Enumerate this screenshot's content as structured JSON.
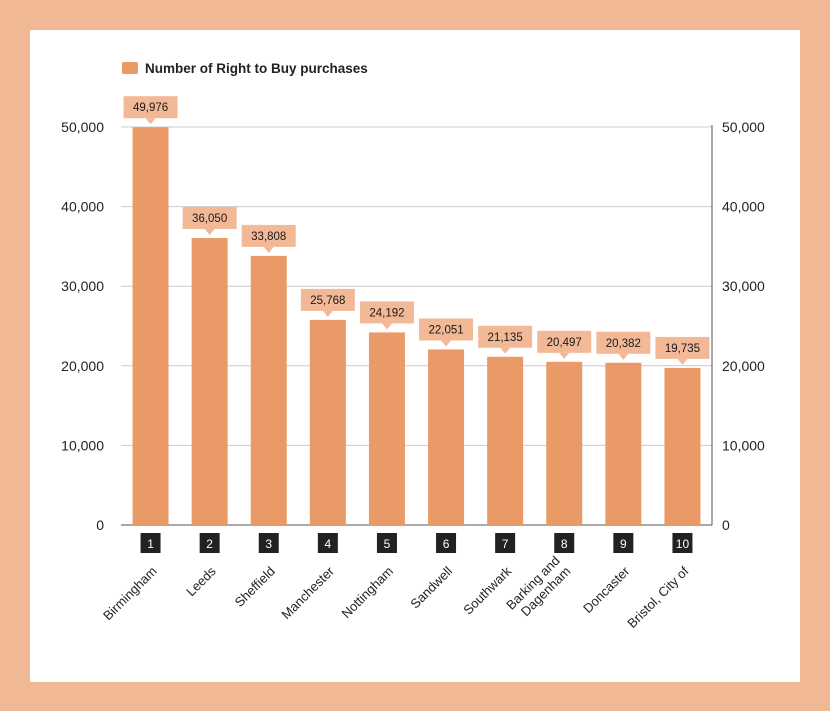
{
  "colors": {
    "background": "#f0b894",
    "panel": "#ffffff",
    "bar": "#ea9a66",
    "label_box": "#f3b896",
    "rank_box": "#222222",
    "grid": "#cccccc",
    "axis": "#555555"
  },
  "chart_data": {
    "type": "bar",
    "legend": "Number of Right to Buy purchases",
    "legend_position": "top-left",
    "series": [
      {
        "name": "Number of Right to Buy purchases",
        "values": [
          49976,
          36050,
          33808,
          25768,
          24192,
          22051,
          21135,
          20497,
          20382,
          19735
        ]
      }
    ],
    "categories": [
      [
        "Birmingham"
      ],
      [
        "Leeds"
      ],
      [
        "Sheffield"
      ],
      [
        "Manchester"
      ],
      [
        "Nottingham"
      ],
      [
        "Sandwell"
      ],
      [
        "Southwark"
      ],
      [
        "Barking and",
        "Dagenham"
      ],
      [
        "Doncaster"
      ],
      [
        "Bristol, City of"
      ]
    ],
    "ranks": [
      "1",
      "2",
      "3",
      "4",
      "5",
      "6",
      "7",
      "8",
      "9",
      "10"
    ],
    "data_labels": [
      "49,976",
      "36,050",
      "33,808",
      "25,768",
      "24,192",
      "22,051",
      "21,135",
      "20,497",
      "20,382",
      "19,735"
    ],
    "y_ticks": [
      0,
      10000,
      20000,
      30000,
      40000,
      50000
    ],
    "y_tick_labels": [
      "0",
      "10,000",
      "20,000",
      "30,000",
      "40,000",
      "50,000"
    ],
    "ylim": [
      0,
      50000
    ],
    "grid": true,
    "right_axis": true
  }
}
